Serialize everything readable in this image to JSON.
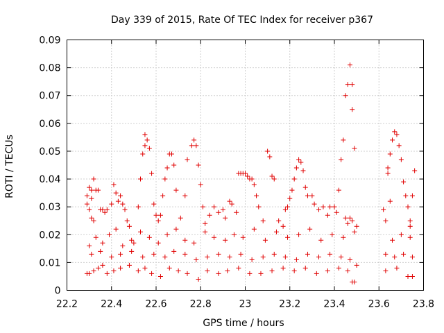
{
  "chart_data": {
    "type": "scatter",
    "title": "Day 339 of 2015, Rate Of TEC Index for receiver p367",
    "xlabel": "GPS time / hours",
    "ylabel": "ROTI / TECUs",
    "xlim": [
      22.2,
      23.8
    ],
    "ylim": [
      0,
      0.09
    ],
    "x_ticks": [
      22.2,
      22.4,
      22.6,
      22.8,
      23.0,
      23.2,
      23.4,
      23.6,
      23.8
    ],
    "x_tick_labels": [
      "22.2",
      "22.4",
      "22.6",
      "22.8",
      "23",
      "23.2",
      "23.4",
      "23.6",
      "23.8"
    ],
    "y_ticks": [
      0,
      0.01,
      0.02,
      0.03,
      0.04,
      0.05,
      0.06,
      0.07,
      0.08,
      0.09
    ],
    "y_tick_labels": [
      "0",
      "0.01",
      "0.02",
      "0.03",
      "0.04",
      "0.05",
      "0.06",
      "0.07",
      "0.08",
      "0.09"
    ],
    "grid": true,
    "marker": "+",
    "color": "#e00000",
    "series": [
      {
        "name": "ROTI",
        "points": [
          [
            22.29,
            0.034
          ],
          [
            22.29,
            0.031
          ],
          [
            22.3,
            0.037
          ],
          [
            22.31,
            0.036
          ],
          [
            22.31,
            0.033
          ],
          [
            22.32,
            0.04
          ],
          [
            22.3,
            0.029
          ],
          [
            22.31,
            0.026
          ],
          [
            22.32,
            0.025
          ],
          [
            22.33,
            0.036
          ],
          [
            22.34,
            0.036
          ],
          [
            22.35,
            0.029
          ],
          [
            22.36,
            0.029
          ],
          [
            22.37,
            0.028
          ],
          [
            22.38,
            0.029
          ],
          [
            22.4,
            0.031
          ],
          [
            22.41,
            0.038
          ],
          [
            22.42,
            0.035
          ],
          [
            22.43,
            0.032
          ],
          [
            22.44,
            0.034
          ],
          [
            22.45,
            0.031
          ],
          [
            22.46,
            0.029
          ],
          [
            22.47,
            0.025
          ],
          [
            22.48,
            0.023
          ],
          [
            22.5,
            0.017
          ],
          [
            22.52,
            0.03
          ],
          [
            22.53,
            0.04
          ],
          [
            22.54,
            0.049
          ],
          [
            22.55,
            0.052
          ],
          [
            22.55,
            0.056
          ],
          [
            22.56,
            0.054
          ],
          [
            22.57,
            0.051
          ],
          [
            22.58,
            0.042
          ],
          [
            22.59,
            0.031
          ],
          [
            22.6,
            0.027
          ],
          [
            22.61,
            0.025
          ],
          [
            22.62,
            0.027
          ],
          [
            22.63,
            0.034
          ],
          [
            22.64,
            0.04
          ],
          [
            22.65,
            0.044
          ],
          [
            22.66,
            0.049
          ],
          [
            22.67,
            0.049
          ],
          [
            22.68,
            0.045
          ],
          [
            22.69,
            0.036
          ],
          [
            22.71,
            0.026
          ],
          [
            22.73,
            0.034
          ],
          [
            22.74,
            0.047
          ],
          [
            22.76,
            0.052
          ],
          [
            22.77,
            0.054
          ],
          [
            22.78,
            0.052
          ],
          [
            22.79,
            0.045
          ],
          [
            22.8,
            0.038
          ],
          [
            22.81,
            0.03
          ],
          [
            22.82,
            0.024
          ],
          [
            22.84,
            0.027
          ],
          [
            22.86,
            0.03
          ],
          [
            22.88,
            0.028
          ],
          [
            22.9,
            0.029
          ],
          [
            22.91,
            0.026
          ],
          [
            22.93,
            0.032
          ],
          [
            22.94,
            0.031
          ],
          [
            22.96,
            0.028
          ],
          [
            22.97,
            0.042
          ],
          [
            22.98,
            0.042
          ],
          [
            22.99,
            0.042
          ],
          [
            23.0,
            0.042
          ],
          [
            23.01,
            0.041
          ],
          [
            23.02,
            0.04
          ],
          [
            23.03,
            0.04
          ],
          [
            23.04,
            0.038
          ],
          [
            23.05,
            0.034
          ],
          [
            23.06,
            0.03
          ],
          [
            23.08,
            0.025
          ],
          [
            23.1,
            0.05
          ],
          [
            23.11,
            0.048
          ],
          [
            23.12,
            0.041
          ],
          [
            23.13,
            0.04
          ],
          [
            23.15,
            0.025
          ],
          [
            23.17,
            0.023
          ],
          [
            23.18,
            0.029
          ],
          [
            23.19,
            0.03
          ],
          [
            23.2,
            0.033
          ],
          [
            23.21,
            0.036
          ],
          [
            23.22,
            0.04
          ],
          [
            23.23,
            0.044
          ],
          [
            23.24,
            0.047
          ],
          [
            23.25,
            0.046
          ],
          [
            23.26,
            0.043
          ],
          [
            23.27,
            0.037
          ],
          [
            23.28,
            0.034
          ],
          [
            23.3,
            0.034
          ],
          [
            23.31,
            0.031
          ],
          [
            23.33,
            0.029
          ],
          [
            23.35,
            0.03
          ],
          [
            23.37,
            0.027
          ],
          [
            23.38,
            0.03
          ],
          [
            23.4,
            0.03
          ],
          [
            23.41,
            0.028
          ],
          [
            23.42,
            0.036
          ],
          [
            23.43,
            0.047
          ],
          [
            23.44,
            0.054
          ],
          [
            23.45,
            0.07
          ],
          [
            23.46,
            0.074
          ],
          [
            23.47,
            0.081
          ],
          [
            23.48,
            0.074
          ],
          [
            23.48,
            0.065
          ],
          [
            23.49,
            0.051
          ],
          [
            23.47,
            0.026
          ],
          [
            23.45,
            0.026
          ],
          [
            23.46,
            0.024
          ],
          [
            23.48,
            0.025
          ],
          [
            23.5,
            0.023
          ],
          [
            23.48,
            0.003
          ],
          [
            23.49,
            0.003
          ],
          [
            23.62,
            0.029
          ],
          [
            23.63,
            0.025
          ],
          [
            23.64,
            0.042
          ],
          [
            23.64,
            0.044
          ],
          [
            23.65,
            0.032
          ],
          [
            23.65,
            0.049
          ],
          [
            23.66,
            0.054
          ],
          [
            23.67,
            0.057
          ],
          [
            23.68,
            0.056
          ],
          [
            23.69,
            0.052
          ],
          [
            23.7,
            0.047
          ],
          [
            23.71,
            0.039
          ],
          [
            23.72,
            0.034
          ],
          [
            23.73,
            0.03
          ],
          [
            23.74,
            0.025
          ],
          [
            23.75,
            0.034
          ],
          [
            23.76,
            0.043
          ],
          [
            23.74,
            0.023
          ],
          [
            23.75,
            0.005
          ],
          [
            23.73,
            0.005
          ],
          [
            23.63,
            0.007
          ],
          [
            23.68,
            0.008
          ],
          [
            22.29,
            0.006
          ],
          [
            22.3,
            0.006
          ],
          [
            22.32,
            0.007
          ],
          [
            22.34,
            0.008
          ],
          [
            22.36,
            0.009
          ],
          [
            22.38,
            0.006
          ],
          [
            22.41,
            0.007
          ],
          [
            22.44,
            0.008
          ],
          [
            22.48,
            0.009
          ],
          [
            22.52,
            0.007
          ],
          [
            22.55,
            0.008
          ],
          [
            22.58,
            0.006
          ],
          [
            22.62,
            0.005
          ],
          [
            22.66,
            0.008
          ],
          [
            22.7,
            0.007
          ],
          [
            22.74,
            0.006
          ],
          [
            22.79,
            0.004
          ],
          [
            22.83,
            0.007
          ],
          [
            22.88,
            0.006
          ],
          [
            22.92,
            0.007
          ],
          [
            22.97,
            0.008
          ],
          [
            23.02,
            0.006
          ],
          [
            23.07,
            0.006
          ],
          [
            23.12,
            0.007
          ],
          [
            23.17,
            0.008
          ],
          [
            23.22,
            0.007
          ],
          [
            23.27,
            0.008
          ],
          [
            23.32,
            0.006
          ],
          [
            23.37,
            0.007
          ],
          [
            23.42,
            0.008
          ],
          [
            23.46,
            0.007
          ],
          [
            23.5,
            0.009
          ],
          [
            22.3,
            0.016
          ],
          [
            22.33,
            0.019
          ],
          [
            22.36,
            0.017
          ],
          [
            22.39,
            0.02
          ],
          [
            22.42,
            0.022
          ],
          [
            22.45,
            0.016
          ],
          [
            22.49,
            0.018
          ],
          [
            22.53,
            0.021
          ],
          [
            22.57,
            0.019
          ],
          [
            22.61,
            0.017
          ],
          [
            22.65,
            0.02
          ],
          [
            22.69,
            0.022
          ],
          [
            22.73,
            0.018
          ],
          [
            22.77,
            0.017
          ],
          [
            22.82,
            0.021
          ],
          [
            22.86,
            0.019
          ],
          [
            22.91,
            0.018
          ],
          [
            22.95,
            0.02
          ],
          [
            22.99,
            0.019
          ],
          [
            23.04,
            0.022
          ],
          [
            23.09,
            0.018
          ],
          [
            23.14,
            0.021
          ],
          [
            23.19,
            0.019
          ],
          [
            23.24,
            0.02
          ],
          [
            23.29,
            0.022
          ],
          [
            23.34,
            0.018
          ],
          [
            23.39,
            0.02
          ],
          [
            23.44,
            0.019
          ],
          [
            23.49,
            0.021
          ],
          [
            23.66,
            0.018
          ],
          [
            23.7,
            0.02
          ],
          [
            23.74,
            0.019
          ],
          [
            22.31,
            0.013
          ],
          [
            22.35,
            0.014
          ],
          [
            22.4,
            0.012
          ],
          [
            22.44,
            0.013
          ],
          [
            22.49,
            0.014
          ],
          [
            22.54,
            0.012
          ],
          [
            22.59,
            0.013
          ],
          [
            22.64,
            0.012
          ],
          [
            22.68,
            0.014
          ],
          [
            22.73,
            0.013
          ],
          [
            22.78,
            0.011
          ],
          [
            22.83,
            0.012
          ],
          [
            22.88,
            0.013
          ],
          [
            22.93,
            0.012
          ],
          [
            22.98,
            0.013
          ],
          [
            23.03,
            0.011
          ],
          [
            23.08,
            0.012
          ],
          [
            23.13,
            0.013
          ],
          [
            23.18,
            0.012
          ],
          [
            23.23,
            0.011
          ],
          [
            23.28,
            0.013
          ],
          [
            23.33,
            0.012
          ],
          [
            23.38,
            0.013
          ],
          [
            23.43,
            0.012
          ],
          [
            23.47,
            0.011
          ],
          [
            23.63,
            0.013
          ],
          [
            23.67,
            0.012
          ],
          [
            23.71,
            0.013
          ],
          [
            23.75,
            0.012
          ]
        ]
      }
    ]
  }
}
